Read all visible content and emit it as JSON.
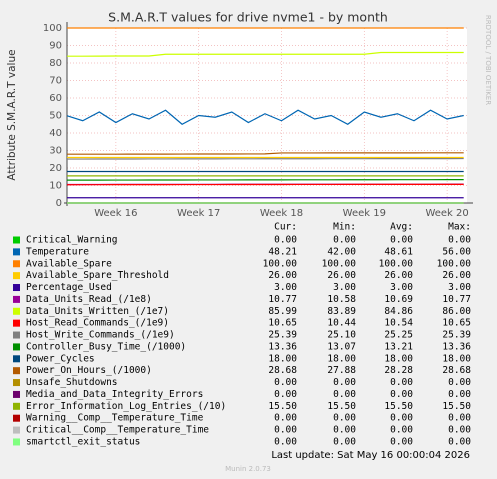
{
  "chart_data": {
    "type": "line",
    "title": "S.M.A.R.T values for drive nvme1 - by month",
    "y_label": "Attribute S.M.A.R.T value",
    "watermark": "RRDTOOL / TOBI OETIKER",
    "grid": true,
    "x": [
      15.4,
      15.6,
      15.8,
      16.0,
      16.2,
      16.4,
      16.6,
      16.8,
      17.0,
      17.2,
      17.4,
      17.6,
      17.8,
      18.0,
      18.2,
      18.4,
      18.6,
      18.8,
      19.0,
      19.2,
      19.4,
      19.6,
      19.8,
      20.0,
      20.2
    ],
    "xlim": [
      15.41,
      20.24
    ],
    "xticks": [
      {
        "value": 16,
        "label": "Week 16"
      },
      {
        "value": 17,
        "label": "Week 17"
      },
      {
        "value": 18,
        "label": "Week 18"
      },
      {
        "value": 19,
        "label": "Week 19"
      },
      {
        "value": 20,
        "label": "Week 20"
      }
    ],
    "ylim": [
      0,
      100
    ],
    "yticks": [
      0,
      10,
      20,
      30,
      40,
      50,
      60,
      70,
      80,
      90,
      100
    ],
    "stat_headers": [
      "Cur:",
      "Min:",
      "Avg:",
      "Max:"
    ],
    "series": [
      {
        "name": "Critical_Warning",
        "color": "#00cc00",
        "values": [
          0,
          0,
          0,
          0,
          0,
          0,
          0,
          0,
          0,
          0,
          0,
          0,
          0,
          0,
          0,
          0,
          0,
          0,
          0,
          0,
          0,
          0,
          0,
          0,
          0
        ],
        "stats": [
          "0.00",
          "0.00",
          "0.00",
          "0.00"
        ]
      },
      {
        "name": "Temperature",
        "color": "#0066b3",
        "values": [
          50,
          47,
          52,
          46,
          51,
          48,
          53,
          45,
          50,
          49,
          52,
          46,
          51,
          47,
          53,
          48,
          50,
          45,
          52,
          49,
          51,
          47,
          53,
          48,
          50
        ],
        "stats": [
          "48.21",
          "42.00",
          "48.61",
          "56.00"
        ]
      },
      {
        "name": "Available_Spare",
        "color": "#ff8000",
        "values": [
          100,
          100,
          100,
          100,
          100,
          100,
          100,
          100,
          100,
          100,
          100,
          100,
          100,
          100,
          100,
          100,
          100,
          100,
          100,
          100,
          100,
          100,
          100,
          100,
          100
        ],
        "stats": [
          "100.00",
          "100.00",
          "100.00",
          "100.00"
        ]
      },
      {
        "name": "Available_Spare_Threshold",
        "color": "#ffcc00",
        "values": [
          26,
          26,
          26,
          26,
          26,
          26,
          26,
          26,
          26,
          26,
          26,
          26,
          26,
          26,
          26,
          26,
          26,
          26,
          26,
          26,
          26,
          26,
          26,
          26,
          26
        ],
        "stats": [
          "26.00",
          "26.00",
          "26.00",
          "26.00"
        ]
      },
      {
        "name": "Percentage_Used",
        "color": "#330099",
        "values": [
          3,
          3,
          3,
          3,
          3,
          3,
          3,
          3,
          3,
          3,
          3,
          3,
          3,
          3,
          3,
          3,
          3,
          3,
          3,
          3,
          3,
          3,
          3,
          3,
          3
        ],
        "stats": [
          "3.00",
          "3.00",
          "3.00",
          "3.00"
        ]
      },
      {
        "name": "Data_Units_Read_(/1e8)",
        "color": "#990099",
        "values": [
          10.58,
          10.58,
          10.6,
          10.62,
          10.63,
          10.65,
          10.66,
          10.67,
          10.68,
          10.69,
          10.7,
          10.7,
          10.71,
          10.72,
          10.72,
          10.73,
          10.73,
          10.74,
          10.74,
          10.75,
          10.75,
          10.76,
          10.76,
          10.77,
          10.77
        ],
        "stats": [
          "10.77",
          "10.58",
          "10.69",
          "10.77"
        ]
      },
      {
        "name": "Data_Units_Written_(/1e7)",
        "color": "#ccff00",
        "values": [
          83.89,
          83.9,
          83.95,
          84,
          84,
          84,
          85,
          85,
          85,
          85,
          85,
          85,
          85,
          85,
          85,
          85,
          85,
          85,
          85,
          86,
          86,
          86,
          86,
          86,
          86
        ],
        "stats": [
          "85.99",
          "83.89",
          "84.86",
          "86.00"
        ]
      },
      {
        "name": "Host_Read_Commands_(/1e9)",
        "color": "#ff0000",
        "values": [
          10.44,
          10.45,
          10.46,
          10.48,
          10.5,
          10.51,
          10.52,
          10.53,
          10.54,
          10.55,
          10.56,
          10.57,
          10.58,
          10.59,
          10.6,
          10.6,
          10.61,
          10.62,
          10.62,
          10.63,
          10.63,
          10.64,
          10.64,
          10.65,
          10.65
        ],
        "stats": [
          "10.65",
          "10.44",
          "10.54",
          "10.65"
        ]
      },
      {
        "name": "Host_Write_Commands_(/1e9)",
        "color": "#808080",
        "values": [
          25.1,
          25.11,
          25.13,
          25.15,
          25.16,
          25.18,
          25.19,
          25.2,
          25.22,
          25.23,
          25.24,
          25.25,
          25.27,
          25.28,
          25.29,
          25.3,
          25.31,
          25.32,
          25.33,
          25.34,
          25.35,
          25.36,
          25.37,
          25.38,
          25.39
        ],
        "stats": [
          "25.39",
          "25.10",
          "25.25",
          "25.39"
        ]
      },
      {
        "name": "Controller_Busy_Time_(/1000)",
        "color": "#008f00",
        "values": [
          13.07,
          13.08,
          13.09,
          13.1,
          13.12,
          13.13,
          13.14,
          13.15,
          13.17,
          13.18,
          13.19,
          13.2,
          13.21,
          13.22,
          13.24,
          13.25,
          13.26,
          13.27,
          13.28,
          13.3,
          13.31,
          13.32,
          13.33,
          13.35,
          13.36
        ],
        "stats": [
          "13.36",
          "13.07",
          "13.21",
          "13.36"
        ]
      },
      {
        "name": "Power_Cycles",
        "color": "#00487d",
        "values": [
          18,
          18,
          18,
          18,
          18,
          18,
          18,
          18,
          18,
          18,
          18,
          18,
          18,
          18,
          18,
          18,
          18,
          18,
          18,
          18,
          18,
          18,
          18,
          18,
          18
        ],
        "stats": [
          "18.00",
          "18.00",
          "18.00",
          "18.00"
        ]
      },
      {
        "name": "Power_On_Hours_(/1000)",
        "color": "#b35a00",
        "values": [
          27.88,
          27.88,
          27.9,
          27.9,
          27.92,
          27.93,
          27.95,
          27.96,
          27.98,
          28,
          28.02,
          28.04,
          28.06,
          28.6,
          28.6,
          28.61,
          28.62,
          28.63,
          28.64,
          28.65,
          28.65,
          28.66,
          28.67,
          28.68,
          28.68
        ],
        "stats": [
          "28.68",
          "27.88",
          "28.28",
          "28.68"
        ]
      },
      {
        "name": "Unsafe_Shutdowns",
        "color": "#b38f00",
        "values": [
          0,
          0,
          0,
          0,
          0,
          0,
          0,
          0,
          0,
          0,
          0,
          0,
          0,
          0,
          0,
          0,
          0,
          0,
          0,
          0,
          0,
          0,
          0,
          0,
          0
        ],
        "stats": [
          "0.00",
          "0.00",
          "0.00",
          "0.00"
        ]
      },
      {
        "name": "Media_and_Data_Integrity_Errors",
        "color": "#6b006b",
        "values": [
          0,
          0,
          0,
          0,
          0,
          0,
          0,
          0,
          0,
          0,
          0,
          0,
          0,
          0,
          0,
          0,
          0,
          0,
          0,
          0,
          0,
          0,
          0,
          0,
          0
        ],
        "stats": [
          "0.00",
          "0.00",
          "0.00",
          "0.00"
        ]
      },
      {
        "name": "Error_Information_Log_Entries_(/10)",
        "color": "#8fb300",
        "values": [
          15.5,
          15.5,
          15.5,
          15.5,
          15.5,
          15.5,
          15.5,
          15.5,
          15.5,
          15.5,
          15.5,
          15.5,
          15.5,
          15.5,
          15.5,
          15.5,
          15.5,
          15.5,
          15.5,
          15.5,
          15.5,
          15.5,
          15.5,
          15.5,
          15.5
        ],
        "stats": [
          "15.50",
          "15.50",
          "15.50",
          "15.50"
        ]
      },
      {
        "name": "Warning__Comp__Temperature_Time",
        "color": "#b30000",
        "values": [
          0,
          0,
          0,
          0,
          0,
          0,
          0,
          0,
          0,
          0,
          0,
          0,
          0,
          0,
          0,
          0,
          0,
          0,
          0,
          0,
          0,
          0,
          0,
          0,
          0
        ],
        "stats": [
          "0.00",
          "0.00",
          "0.00",
          "0.00"
        ]
      },
      {
        "name": "Critical__Comp__Temperature_Time",
        "color": "#bebebe",
        "values": [
          0,
          0,
          0,
          0,
          0,
          0,
          0,
          0,
          0,
          0,
          0,
          0,
          0,
          0,
          0,
          0,
          0,
          0,
          0,
          0,
          0,
          0,
          0,
          0,
          0
        ],
        "stats": [
          "0.00",
          "0.00",
          "0.00",
          "0.00"
        ]
      },
      {
        "name": "smartctl_exit_status",
        "color": "#80ff80",
        "values": [
          0,
          0,
          0,
          0,
          0,
          0,
          0,
          0,
          0,
          0,
          0,
          0,
          0,
          0,
          0,
          0,
          0,
          0,
          0,
          0,
          0,
          0,
          0,
          0,
          0
        ],
        "stats": [
          "0.00",
          "0.00",
          "0.00",
          "0.00"
        ]
      }
    ],
    "last_update": "Last update: Sat May 16 00:00:04 2026",
    "footer": "Munin 2.0.73"
  }
}
